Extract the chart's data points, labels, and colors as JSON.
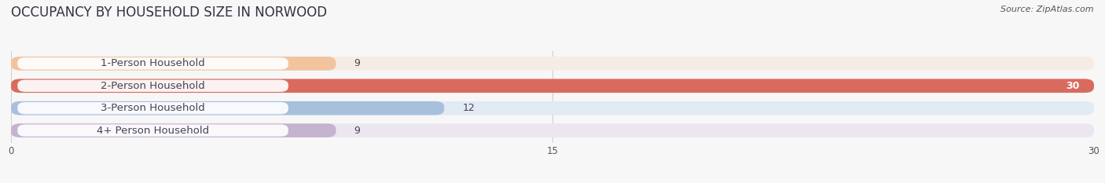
{
  "title": "OCCUPANCY BY HOUSEHOLD SIZE IN NORWOOD",
  "source": "Source: ZipAtlas.com",
  "categories": [
    "1-Person Household",
    "2-Person Household",
    "3-Person Household",
    "4+ Person Household"
  ],
  "values": [
    9,
    30,
    12,
    9
  ],
  "bar_colors": [
    "#f2c49e",
    "#d96b5e",
    "#a8c0dc",
    "#c5b3d0"
  ],
  "bar_bg_colors": [
    "#f5ede4",
    "#f5dcd8",
    "#e2eaf4",
    "#ece6f0"
  ],
  "label_bg_color": "#ffffff",
  "xlim": [
    0,
    30
  ],
  "xticks": [
    0,
    15,
    30
  ],
  "title_fontsize": 12,
  "label_fontsize": 9.5,
  "value_fontsize": 9,
  "background_color": "#f7f7f7",
  "text_color": "#444455",
  "grid_color": "#cccccc"
}
